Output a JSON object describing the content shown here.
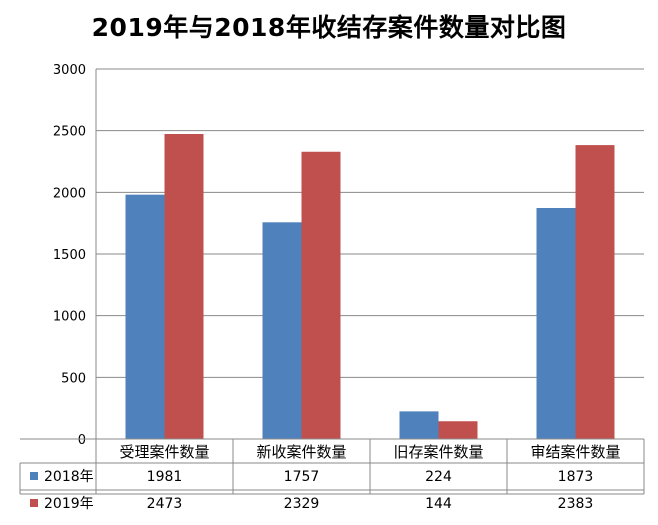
{
  "chart_data": {
    "type": "bar",
    "title": "2019年与2018年收结存案件数量对比图",
    "categories": [
      "受理案件数量",
      "新收案件数量",
      "旧存案件数量",
      "审结案件数量"
    ],
    "series": [
      {
        "name": "2018年",
        "values": [
          1981,
          1757,
          224,
          1873
        ],
        "color": "#4F81BD"
      },
      {
        "name": "2019年",
        "values": [
          2473,
          2329,
          144,
          2383
        ],
        "color": "#C0504D"
      }
    ],
    "ylim": [
      0,
      3000
    ],
    "yticks": [
      "0",
      "500",
      "1000",
      "1500",
      "2000",
      "2500",
      "3000"
    ],
    "grid": true,
    "legend": "data-table-left",
    "xlabel": "",
    "ylabel": ""
  }
}
